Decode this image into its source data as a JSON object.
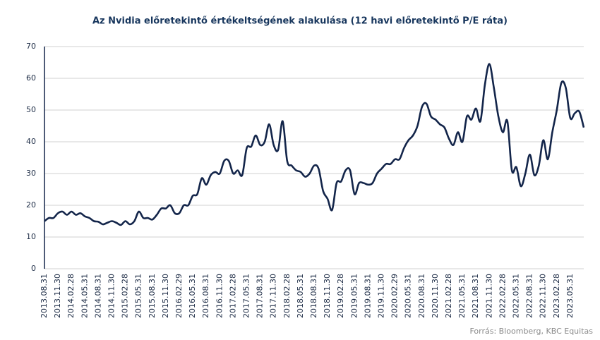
{
  "chart_data": {
    "type": "line",
    "title": "Az Nvidia előretekintő értékeltségének alakulása (12 havi előretekintő P/E ráta)",
    "source": "Forrás: Bloomberg,  KBC Equitas",
    "categories": [
      "2013.08.31",
      null,
      null,
      "2013.11.30",
      null,
      null,
      "2014.02.28",
      null,
      null,
      "2014.05.31",
      null,
      null,
      "2014.08.31",
      null,
      null,
      "2014.11.30",
      null,
      null,
      "2015.02.28",
      null,
      null,
      "2015.05.31",
      null,
      null,
      "2015.08.31",
      null,
      null,
      "2015.11.30",
      null,
      null,
      "2016.02.29",
      null,
      null,
      "2016.05.31",
      null,
      null,
      "2016.08.31",
      null,
      null,
      "2016.11.30",
      null,
      null,
      "2017.02.28",
      null,
      null,
      "2017.05.31",
      null,
      null,
      "2017.08.31",
      null,
      null,
      "2017.11.30",
      null,
      null,
      "2018.02.28",
      null,
      null,
      "2018.05.31",
      null,
      null,
      "2018.08.31",
      null,
      null,
      "2018.11.30",
      null,
      null,
      "2019.02.28",
      null,
      null,
      "2019.05.31",
      null,
      null,
      "2019.08.31",
      null,
      null,
      "2019.11.30",
      null,
      null,
      "2020.02.29",
      null,
      null,
      "2020.05.31",
      null,
      null,
      "2020.08.31",
      null,
      null,
      "2020.11.30",
      null,
      null,
      "2021.02.28",
      null,
      null,
      "2021.05.31",
      null,
      null,
      "2021.08.31",
      null,
      null,
      "2021.11.30",
      null,
      null,
      "2022.02.28",
      null,
      null,
      "2022.05.31",
      null,
      null,
      "2022.08.31",
      null,
      null,
      "2022.11.30",
      null,
      null,
      "2023.02.28",
      null,
      null,
      "2023.05.31",
      null,
      null,
      null
    ],
    "values": [
      15,
      16,
      16,
      17.5,
      18,
      17,
      18,
      17,
      17.5,
      16.5,
      16,
      15,
      14.8,
      14,
      14.5,
      15,
      14.5,
      13.8,
      15,
      14,
      15,
      18,
      16,
      16,
      15.5,
      17,
      19,
      19,
      20,
      17.5,
      17.5,
      20,
      20,
      23,
      23.5,
      28.5,
      26.5,
      29.5,
      30.5,
      30,
      34,
      34,
      30,
      31,
      29.5,
      38,
      38.5,
      42,
      39,
      40,
      45.5,
      39,
      37.5,
      46.5,
      34,
      32.5,
      31,
      30.5,
      29,
      30,
      32.5,
      31.5,
      24.5,
      22,
      18.5,
      27,
      27.5,
      31,
      31,
      23.5,
      27,
      27,
      26.5,
      27,
      30,
      31.5,
      33,
      33,
      34.5,
      34.5,
      38,
      40.5,
      42,
      45,
      51,
      52,
      48,
      47,
      45.5,
      44.5,
      41,
      39,
      43,
      40,
      48,
      47,
      50.5,
      46.5,
      58,
      64.5,
      57,
      48,
      43,
      46.5,
      31,
      32,
      26,
      30,
      36,
      29.5,
      32.5,
      40.5,
      34.5,
      43,
      50,
      58.5,
      57,
      47.5,
      49,
      49.5,
      44.5
    ],
    "color": "#13254a",
    "ylim": [
      0,
      70
    ],
    "yticks": [
      0,
      10,
      20,
      30,
      40,
      50,
      60,
      70
    ],
    "grid": true
  }
}
